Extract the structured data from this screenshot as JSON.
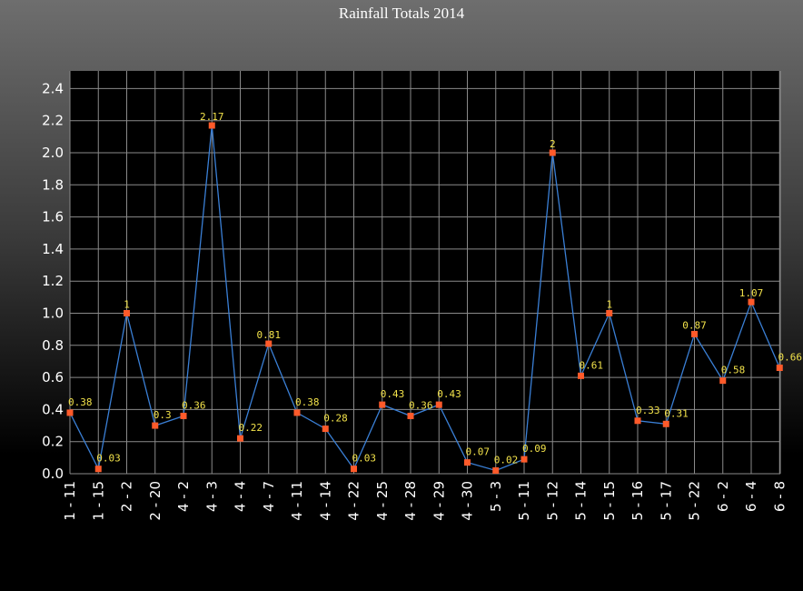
{
  "chart_data": {
    "type": "line",
    "title": "Rainfall  Totals 2014",
    "xlabel": "",
    "ylabel": "",
    "ylim": [
      0,
      2.4
    ],
    "y_ticks": [
      "0.0",
      "0.2",
      "0.4",
      "0.6",
      "0.8",
      "1.0",
      "1.2",
      "1.4",
      "1.6",
      "1.8",
      "2.0",
      "2.2",
      "2.4"
    ],
    "grid": true,
    "categories": [
      "1 - 11",
      "1 - 15",
      "2 - 2",
      "2 - 20",
      "4 - 2",
      "4 - 3",
      "4 - 4",
      "4 - 7",
      "4 - 11",
      "4 - 14",
      "4 - 22",
      "4 - 25",
      "4 - 28",
      "4 - 29",
      "4 - 30",
      "5 - 3",
      "5 - 11",
      "5 - 12",
      "5 - 14",
      "5 - 15",
      "5 - 16",
      "5 - 17",
      "5 - 22",
      "6 - 2",
      "6 - 4",
      "6 - 8"
    ],
    "values": [
      0.38,
      0.03,
      1,
      0.3,
      0.36,
      2.17,
      0.22,
      0.81,
      0.38,
      0.28,
      0.03,
      0.43,
      0.36,
      0.43,
      0.07,
      0.02,
      0.09,
      2,
      0.61,
      1,
      0.33,
      0.31,
      0.87,
      0.58,
      1.07,
      0.66
    ],
    "data_labels": [
      "0.38",
      "0.03",
      "1",
      "0.3",
      "0.36",
      "2.17",
      "0.22",
      "0.81",
      "0.38",
      "0.28",
      "0.03",
      "0.43",
      "0.36",
      "0.43",
      "0.07",
      "0.02",
      "0.09",
      "2",
      "0.61",
      "1",
      "0.33",
      "0.31",
      "0.87",
      "0.58",
      "1.07",
      "0.66"
    ],
    "colors": {
      "line": "#3a7fd5",
      "marker": "#ff5a2a",
      "data_label": "#f2e24a",
      "grid": "#8a8a8a",
      "plot_background": "#000000",
      "text": "#ffffff"
    }
  }
}
